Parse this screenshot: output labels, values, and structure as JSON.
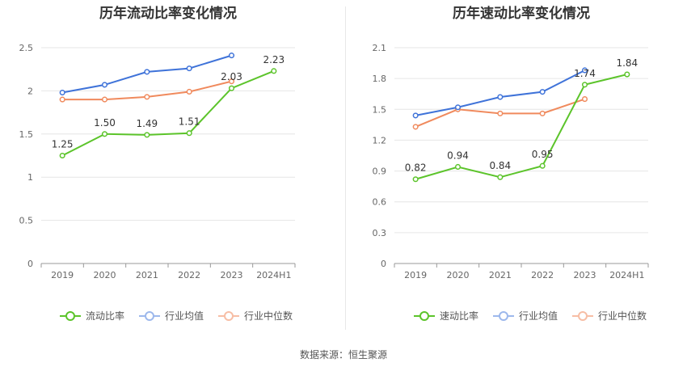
{
  "footer": {
    "source": "数据来源：恒生聚源"
  },
  "chart_data": [
    {
      "type": "line",
      "title": "历年流动比率变化情况",
      "categories": [
        "2019",
        "2020",
        "2021",
        "2022",
        "2023",
        "2024H1"
      ],
      "ylim": [
        0,
        2.5
      ],
      "yticks": [
        "0",
        "0.5",
        "1",
        "1.5",
        "2",
        "2.5"
      ],
      "grid": true,
      "legend_position": "bottom",
      "series": [
        {
          "name": "流动比率",
          "color": "#5cc42b",
          "values": [
            1.25,
            1.5,
            1.49,
            1.51,
            2.03,
            2.23
          ],
          "labels": [
            "1.25",
            "1.50",
            "1.49",
            "1.51",
            "2.03",
            "2.23"
          ]
        },
        {
          "name": "行业均值",
          "color": "#3f73d9",
          "values": [
            1.98,
            2.07,
            2.22,
            2.26,
            2.41,
            null
          ]
        },
        {
          "name": "行业中位数",
          "color": "#f08a5d",
          "values": [
            1.9,
            1.9,
            1.93,
            1.99,
            2.11,
            null
          ]
        }
      ]
    },
    {
      "type": "line",
      "title": "历年速动比率变化情况",
      "categories": [
        "2019",
        "2020",
        "2021",
        "2022",
        "2023",
        "2024H1"
      ],
      "ylim": [
        0,
        2.1
      ],
      "yticks": [
        "0",
        "0.3",
        "0.6",
        "0.9",
        "1.2",
        "1.5",
        "1.8",
        "2.1"
      ],
      "grid": true,
      "legend_position": "bottom",
      "series": [
        {
          "name": "速动比率",
          "color": "#5cc42b",
          "values": [
            0.82,
            0.94,
            0.84,
            0.95,
            1.74,
            1.84
          ],
          "labels": [
            "0.82",
            "0.94",
            "0.84",
            "0.95",
            "1.74",
            "1.84"
          ]
        },
        {
          "name": "行业均值",
          "color": "#3f73d9",
          "values": [
            1.44,
            1.52,
            1.62,
            1.67,
            1.88,
            null
          ]
        },
        {
          "name": "行业中位数",
          "color": "#f08a5d",
          "values": [
            1.33,
            1.5,
            1.46,
            1.46,
            1.6,
            null
          ]
        }
      ]
    }
  ]
}
